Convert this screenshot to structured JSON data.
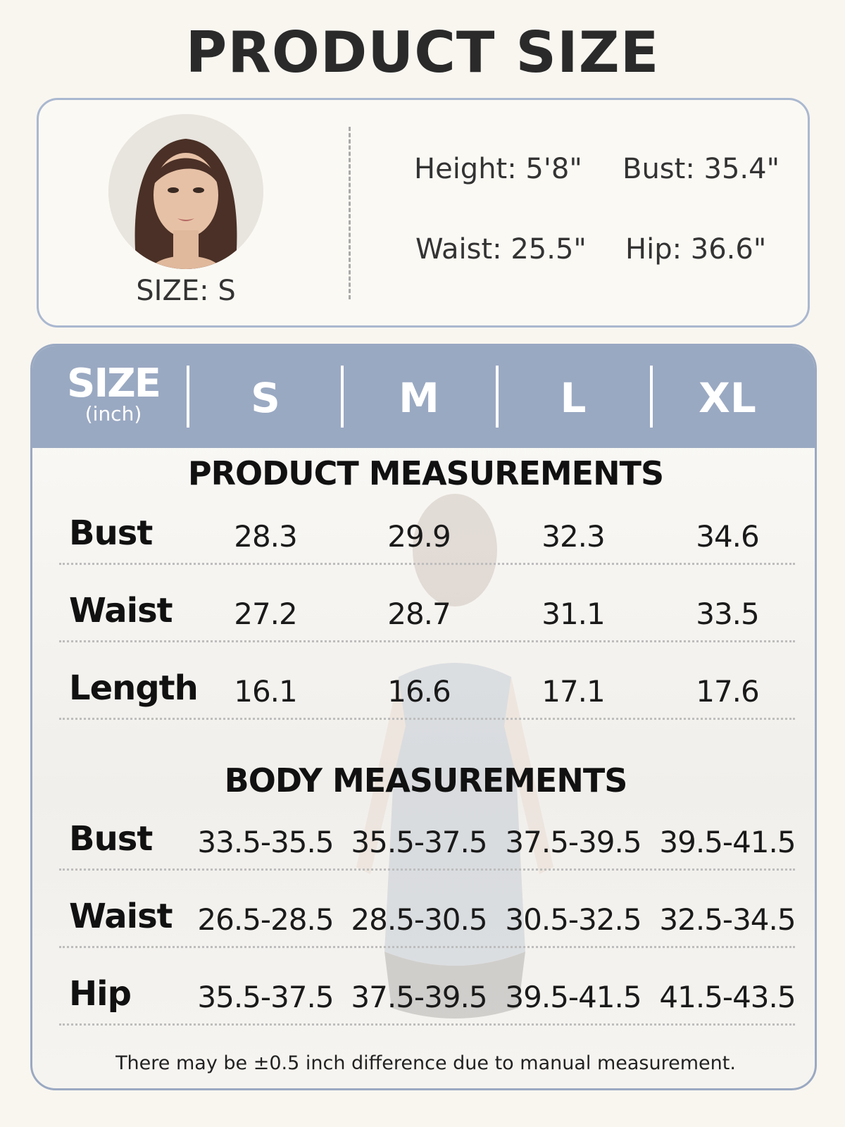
{
  "title": "PRODUCT SIZE",
  "model": {
    "size_label": "SIZE: S",
    "height": "Height: 5'8\"",
    "bust": "Bust: 35.4\"",
    "waist": "Waist: 25.5\"",
    "hip": "Hip: 36.6\""
  },
  "table": {
    "header": {
      "size": "SIZE",
      "unit": "(inch)",
      "sizes": [
        "S",
        "M",
        "L",
        "XL"
      ]
    },
    "product_title": "PRODUCT MEASUREMENTS",
    "product_rows": [
      {
        "label": "Bust",
        "values": [
          "28.3",
          "29.9",
          "32.3",
          "34.6"
        ]
      },
      {
        "label": "Waist",
        "values": [
          "27.2",
          "28.7",
          "31.1",
          "33.5"
        ]
      },
      {
        "label": "Length",
        "values": [
          "16.1",
          "16.6",
          "17.1",
          "17.6"
        ]
      }
    ],
    "body_title": "BODY MEASUREMENTS",
    "body_rows": [
      {
        "label": "Bust",
        "values": [
          "33.5-35.5",
          "35.5-37.5",
          "37.5-39.5",
          "39.5-41.5"
        ]
      },
      {
        "label": "Waist",
        "values": [
          "26.5-28.5",
          "28.5-30.5",
          "30.5-32.5",
          "32.5-34.5"
        ]
      },
      {
        "label": "Hip",
        "values": [
          "35.5-37.5",
          "37.5-39.5",
          "39.5-41.5",
          "41.5-43.5"
        ]
      }
    ],
    "note": "There may be ±0.5 inch difference due to manual measurement."
  },
  "colors": {
    "header": "#9aa9c2",
    "border": "#aab8d0",
    "background": "#f9f6f0"
  }
}
